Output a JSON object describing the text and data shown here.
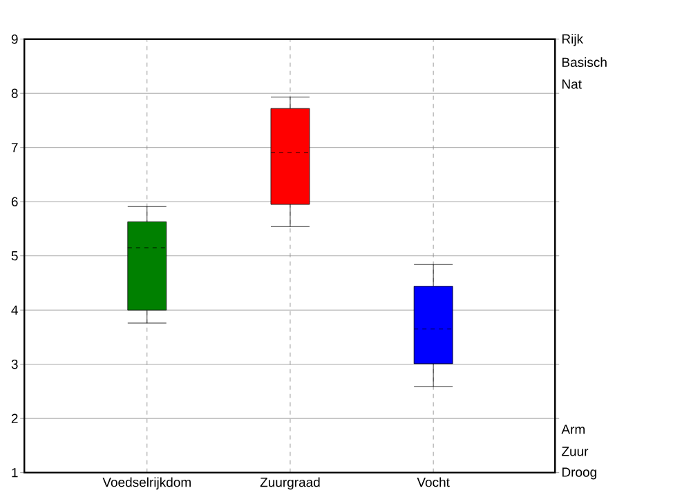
{
  "chart_data": {
    "type": "box",
    "categories": [
      "Voedselrijkdom",
      "Zuurgraad",
      "Vocht"
    ],
    "boxes": [
      {
        "low": 3.76,
        "q1": 4.0,
        "median": 5.15,
        "q3": 5.63,
        "high": 5.91
      },
      {
        "low": 5.54,
        "q1": 5.95,
        "median": 6.91,
        "q3": 7.72,
        "high": 7.93
      },
      {
        "low": 2.59,
        "q1": 3.01,
        "median": 3.65,
        "q3": 4.44,
        "high": 4.84
      }
    ],
    "colors": [
      "#008000",
      "#ff0000",
      "#0000ff"
    ],
    "ylim": [
      1,
      9
    ],
    "yticks": [
      1,
      2,
      3,
      4,
      5,
      6,
      7,
      8,
      9
    ],
    "grid": true,
    "annotations": [
      "Rijk",
      "Basisch",
      "Nat",
      "Arm",
      "Zuur",
      "Droog"
    ]
  }
}
